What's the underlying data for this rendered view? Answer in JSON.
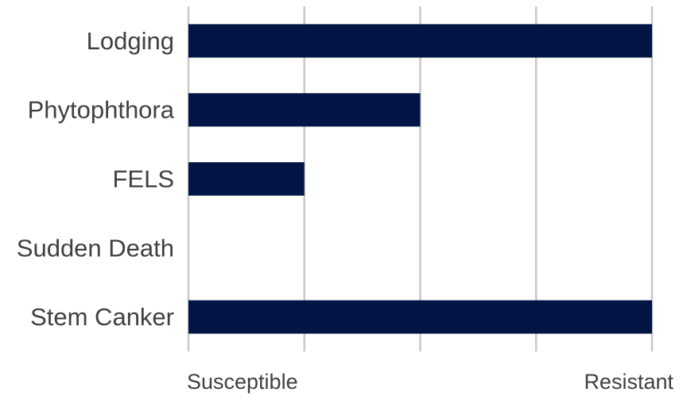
{
  "chart_data": {
    "type": "bar",
    "orientation": "horizontal",
    "categories": [
      "Lodging",
      "Phytophthora",
      "FELS",
      "Sudden Death",
      "Stem Canker"
    ],
    "values": [
      4,
      2,
      1,
      0,
      4
    ],
    "xlim": [
      0,
      4
    ],
    "x_tick_labels": [
      {
        "value": 0,
        "label": "Susceptible"
      },
      {
        "value": 4,
        "label": "Resistant"
      }
    ],
    "grid": "vertical",
    "legend": "none",
    "bar_color": "#021544",
    "grid_color": "#c8c8c8",
    "label_color": "#404040"
  }
}
